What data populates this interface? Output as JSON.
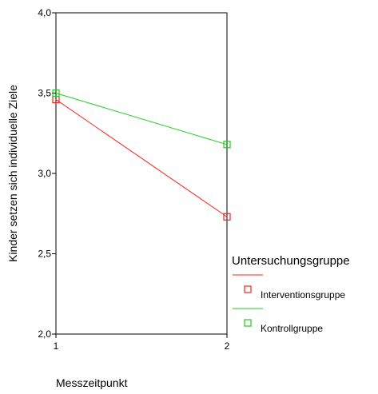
{
  "chart_data": {
    "type": "line",
    "title": "",
    "xlabel": "Messzeitpunkt",
    "ylabel": "Kinder setzen sich individuelle Ziele",
    "categories": [
      "1",
      "2"
    ],
    "yticks": [
      "2,0",
      "2,5",
      "3,0",
      "3,5",
      "4,0"
    ],
    "ytick_values": [
      2.0,
      2.5,
      3.0,
      3.5,
      4.0
    ],
    "ylim": [
      2.0,
      4.0
    ],
    "grid": false,
    "legend_position": "right",
    "legend_title": "Untersuchungsgruppe",
    "series": [
      {
        "name": "Interventionsgruppe",
        "color": "#ff2020",
        "values": [
          3.46,
          2.73
        ]
      },
      {
        "name": "Kontrollgruppe",
        "color": "#22cc22",
        "values": [
          3.5,
          3.18
        ]
      }
    ]
  }
}
